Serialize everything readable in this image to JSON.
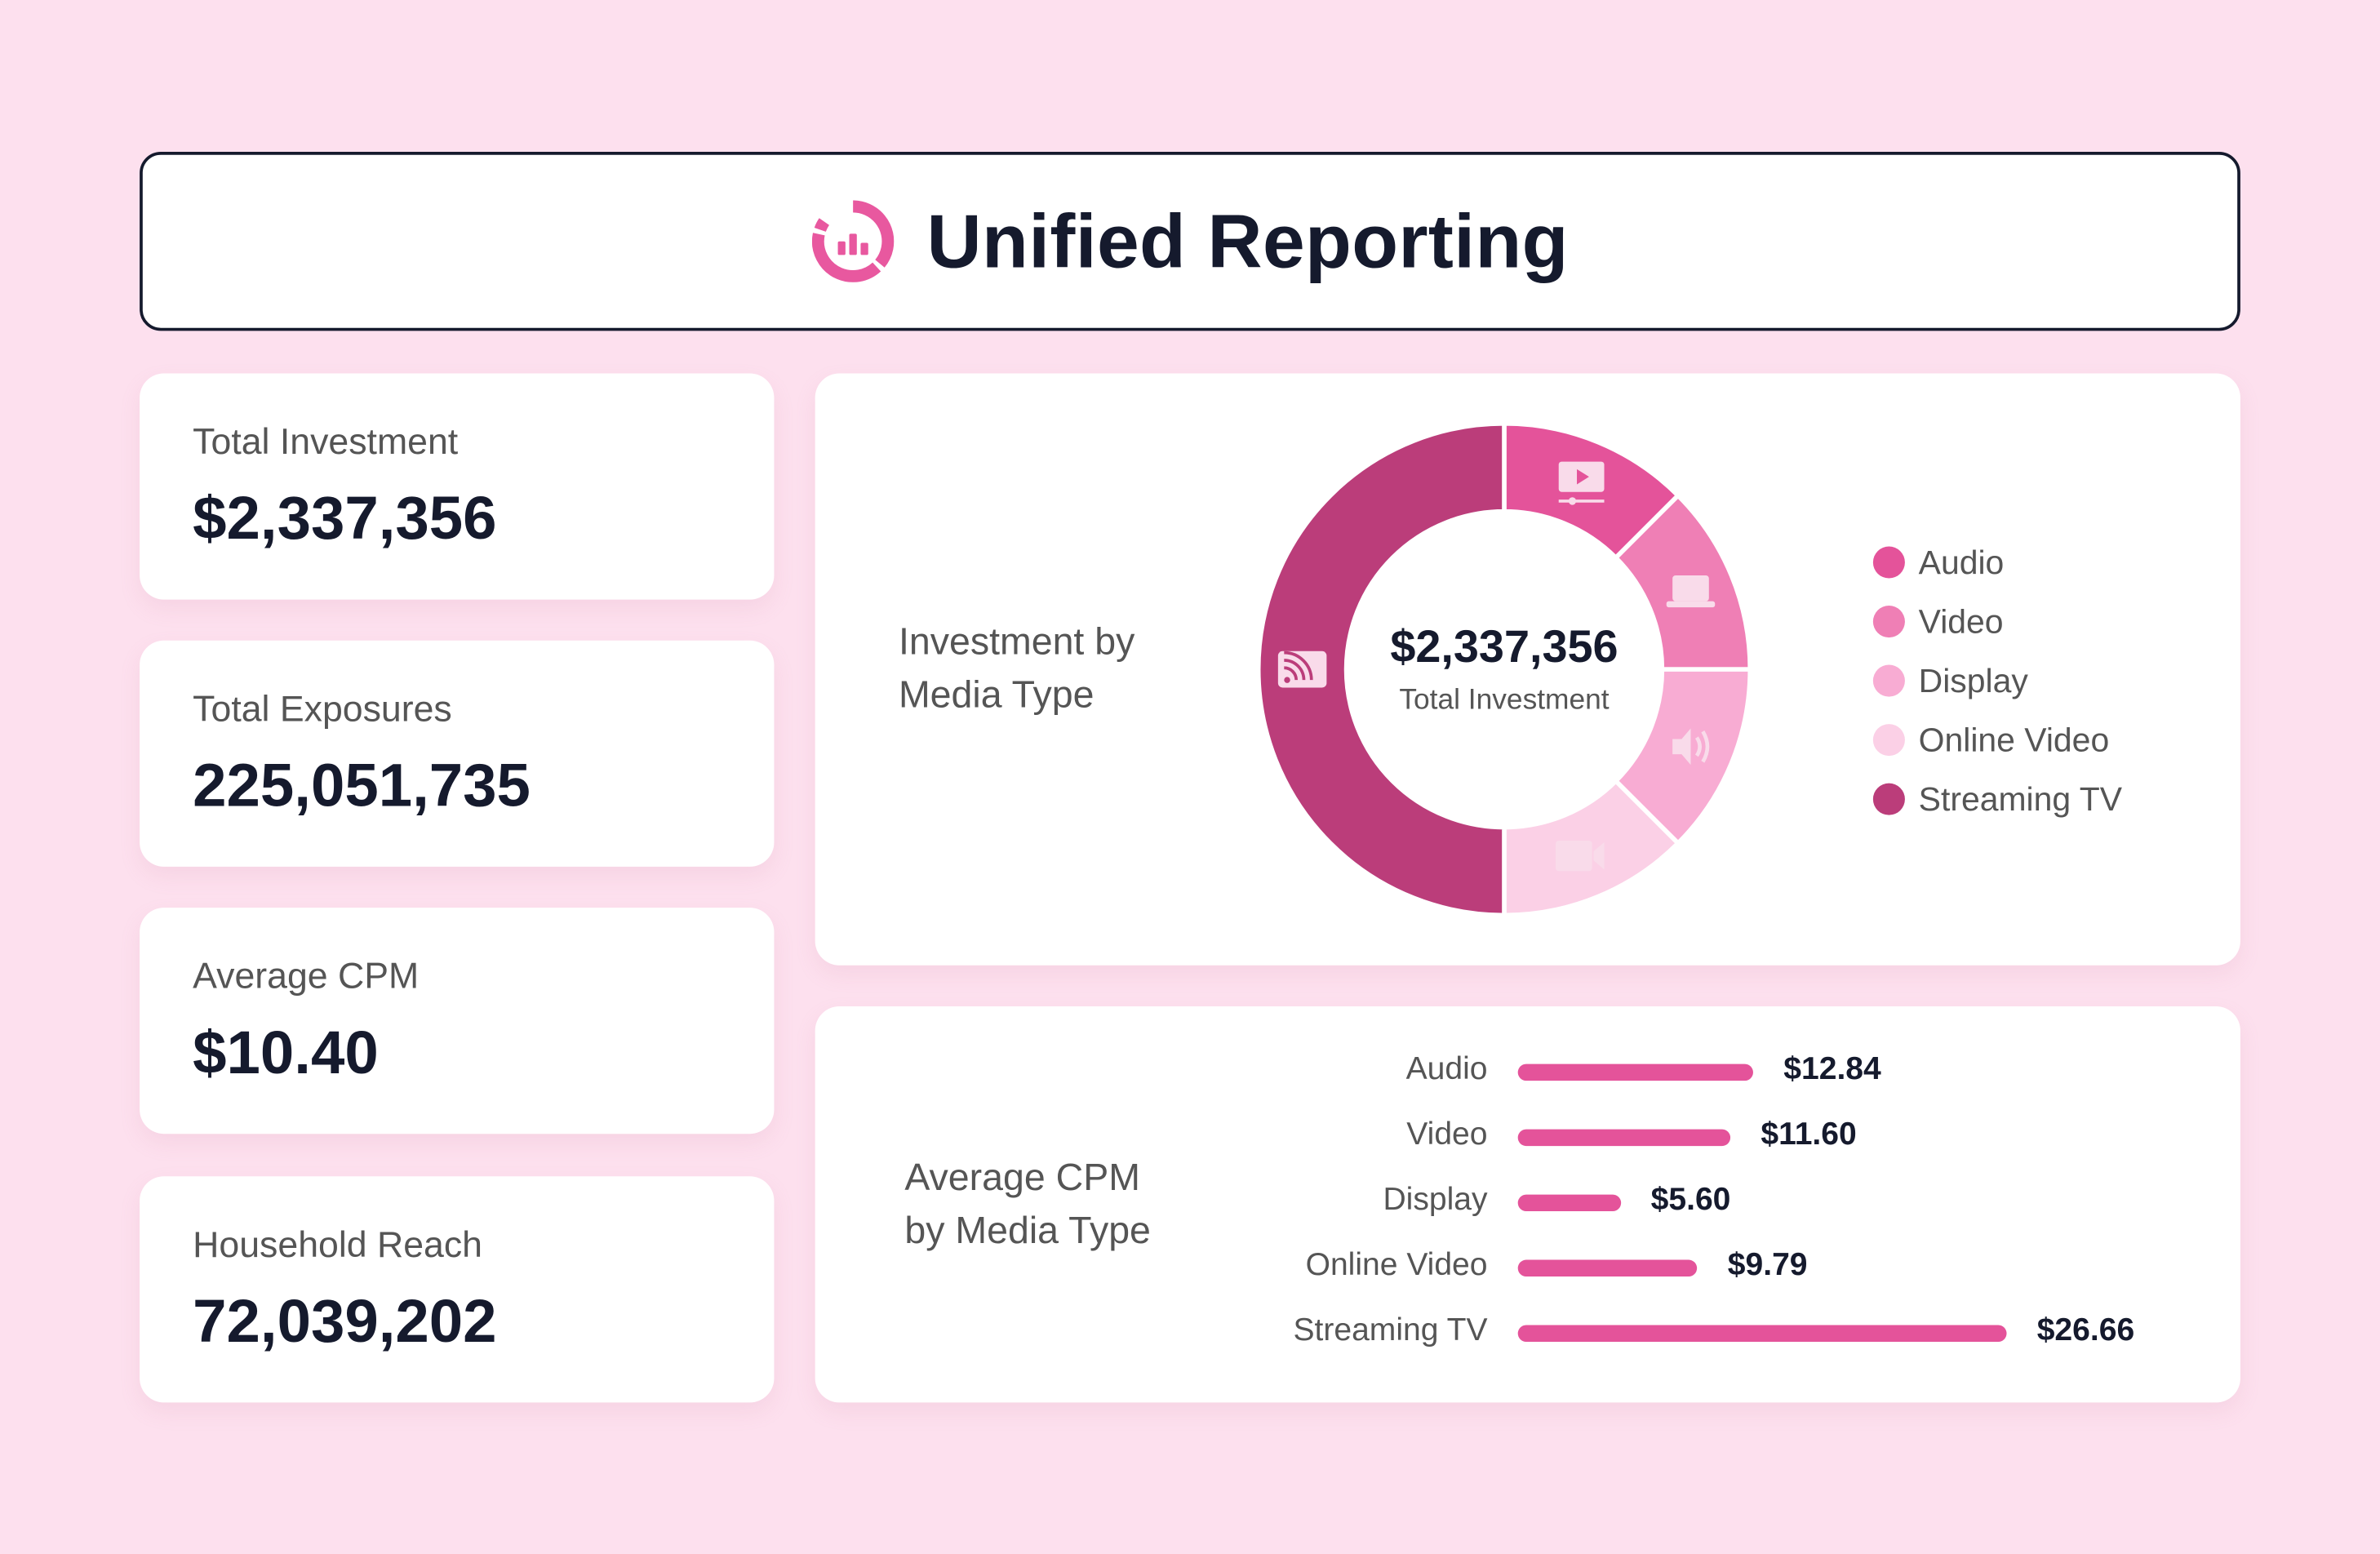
{
  "header": {
    "title": "Unified Reporting",
    "logo_icon": "chart-ring-logo",
    "accent": "#e8589f"
  },
  "kpis": [
    {
      "label": "Total Investment",
      "value": "$2,337,356"
    },
    {
      "label": "Total Exposures",
      "value": "225,051,735"
    },
    {
      "label": "Average CPM",
      "value": "$10.40"
    },
    {
      "label": "Household Reach",
      "value": "72,039,202"
    }
  ],
  "chart_data": [
    {
      "type": "pie",
      "title": "Investment by\nMedia Type",
      "center_value": "$2,337,356",
      "center_label": "Total Investment",
      "legend": "right",
      "slices": [
        {
          "name": "Audio",
          "share": 12.5,
          "color": "#e4539a",
          "icon": "video-player-icon"
        },
        {
          "name": "Video",
          "share": 12.5,
          "color": "#ef7fb5",
          "icon": "laptop-icon"
        },
        {
          "name": "Display",
          "share": 12.5,
          "color": "#f8acd3",
          "icon": "speaker-icon"
        },
        {
          "name": "Online Video",
          "share": 12.5,
          "color": "#fbd0e6",
          "icon": "video-camera-icon"
        },
        {
          "name": "Streaming TV",
          "share": 50,
          "color": "#bb3d7a",
          "icon": "cast-icon"
        }
      ]
    },
    {
      "type": "bar",
      "orientation": "horizontal",
      "title": "Average CPM\nby Media Type",
      "bar_color": "#e4539a",
      "categories": [
        "Audio",
        "Video",
        "Display",
        "Online Video",
        "Streaming TV"
      ],
      "values": [
        12.84,
        11.6,
        5.6,
        9.79,
        26.66
      ],
      "labels": [
        "$12.84",
        "$11.60",
        "$5.60",
        "$9.79",
        "$26.66"
      ]
    }
  ]
}
